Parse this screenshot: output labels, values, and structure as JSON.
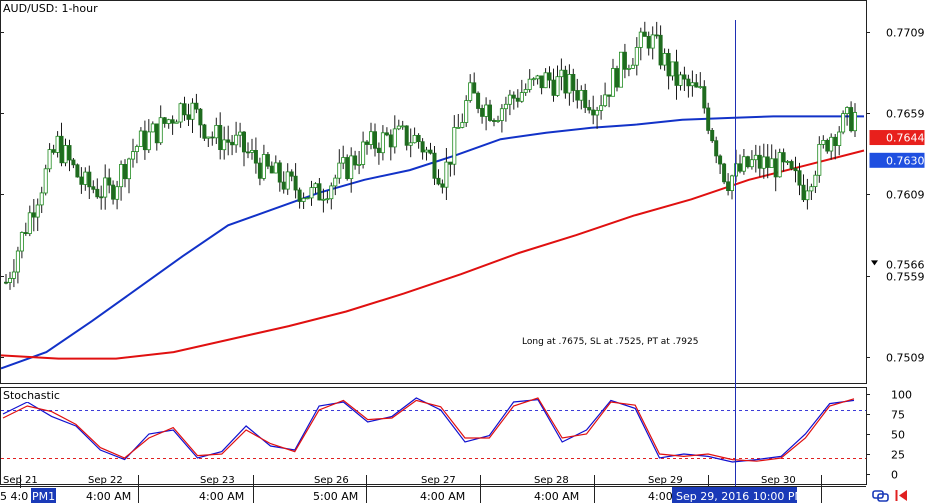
{
  "chart_data": [
    {
      "type": "candlestick",
      "title": "AUD/USD: 1-hour",
      "y_ticks": [
        0.7709,
        0.7659,
        0.7609,
        0.7559,
        0.7509
      ],
      "ylim": [
        0.7493,
        0.7728
      ],
      "markers": [
        {
          "label": "0.7644",
          "value": 0.7644,
          "color": "#e8201c",
          "text_color": "#ffffff"
        },
        {
          "label": "0.7630",
          "value": 0.763,
          "color": "#1f4fe0",
          "text_color": "#ffffff"
        },
        {
          "label": "0.7566",
          "value": 0.7566,
          "color": "#ffffff",
          "text_color": "#000000",
          "arrow": true
        }
      ],
      "annotation": "Long at .7675, SL at .7525, PT at .7925",
      "crosshair_x_label": "Sep 29, 2016 10:00 PM",
      "date_labels": [
        "Sep 21",
        "Sep 22",
        "Sep 23",
        "Sep 26",
        "Sep 27",
        "Sep 28",
        "Sep 29",
        "Sep 30"
      ],
      "time_labels": [
        "4:00 AM",
        "4:00 AM",
        "5:00 AM",
        "4:00 AM",
        "4:00 AM",
        "4:00"
      ],
      "left_time_label": "5 4:0",
      "left_time_label_highlight": "PM1",
      "price_trace": [
        0.7555,
        0.76,
        0.764,
        0.7615,
        0.761,
        0.7638,
        0.765,
        0.7666,
        0.7645,
        0.764,
        0.7625,
        0.7615,
        0.7608,
        0.7622,
        0.7638,
        0.7645,
        0.7643,
        0.762,
        0.767,
        0.766,
        0.7672,
        0.768,
        0.7675,
        0.7665,
        0.769,
        0.7706,
        0.768,
        0.767,
        0.7618,
        0.7628,
        0.7627,
        0.7613,
        0.7645,
        0.7658
      ],
      "series": [
        {
          "name": "",
          "color": "#1232c8",
          "values": [
            0.7502,
            0.7512,
            0.7531,
            0.7551,
            0.7571,
            0.759,
            0.76,
            0.761,
            0.7618,
            0.7624,
            0.7633,
            0.7643,
            0.7647,
            0.765,
            0.7652,
            0.7655,
            0.7656,
            0.7657,
            0.7657,
            0.7657
          ]
        },
        {
          "name": "",
          "color": "#e01010",
          "values": [
            0.751,
            0.7508,
            0.7508,
            0.7512,
            0.752,
            0.7528,
            0.7537,
            0.7548,
            0.756,
            0.7573,
            0.7584,
            0.7596,
            0.7606,
            0.7618,
            0.7627,
            0.7636
          ]
        }
      ]
    },
    {
      "type": "line",
      "title": "Stochastic",
      "y_ticks": [
        100,
        75,
        50,
        25,
        0
      ],
      "ylim": [
        0,
        100
      ],
      "levels": [
        {
          "value": 80,
          "color": "#3c3cd8"
        },
        {
          "value": 20,
          "color": "#e02020"
        }
      ],
      "series": [
        {
          "name": "",
          "color": "#1010d0",
          "values": [
            75,
            90,
            72,
            60,
            30,
            18,
            50,
            55,
            20,
            28,
            60,
            35,
            30,
            85,
            90,
            65,
            72,
            95,
            80,
            40,
            48,
            90,
            93,
            40,
            55,
            92,
            82,
            20,
            25,
            22,
            15,
            18,
            22,
            50,
            88,
            92
          ]
        },
        {
          "name": "",
          "color": "#e01010",
          "values": [
            70,
            85,
            78,
            62,
            33,
            20,
            45,
            58,
            23,
            25,
            55,
            38,
            28,
            80,
            92,
            68,
            70,
            92,
            84,
            45,
            45,
            85,
            95,
            45,
            50,
            90,
            86,
            25,
            22,
            25,
            18,
            16,
            20,
            45,
            85,
            94
          ]
        }
      ]
    }
  ]
}
